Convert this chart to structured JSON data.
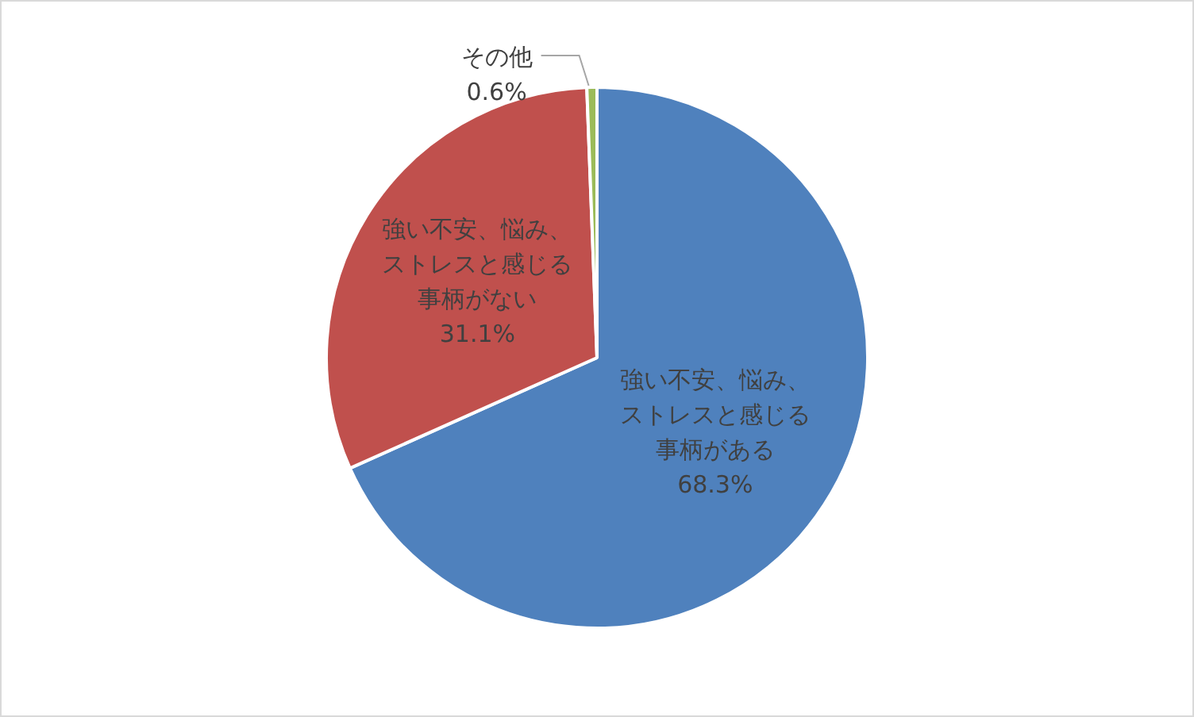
{
  "chart_data": {
    "type": "pie",
    "categories": [
      "強い不安、悩み、ストレスと感じる事柄がある",
      "強い不安、悩み、ストレスと感じる事柄がない",
      "その他"
    ],
    "values": [
      68.3,
      31.1,
      0.6
    ],
    "colors": [
      "#4f81bd",
      "#c0504d",
      "#9bbb59"
    ],
    "value_labels": [
      "68.3%",
      "31.1%",
      "0.6%"
    ],
    "legend": false
  }
}
